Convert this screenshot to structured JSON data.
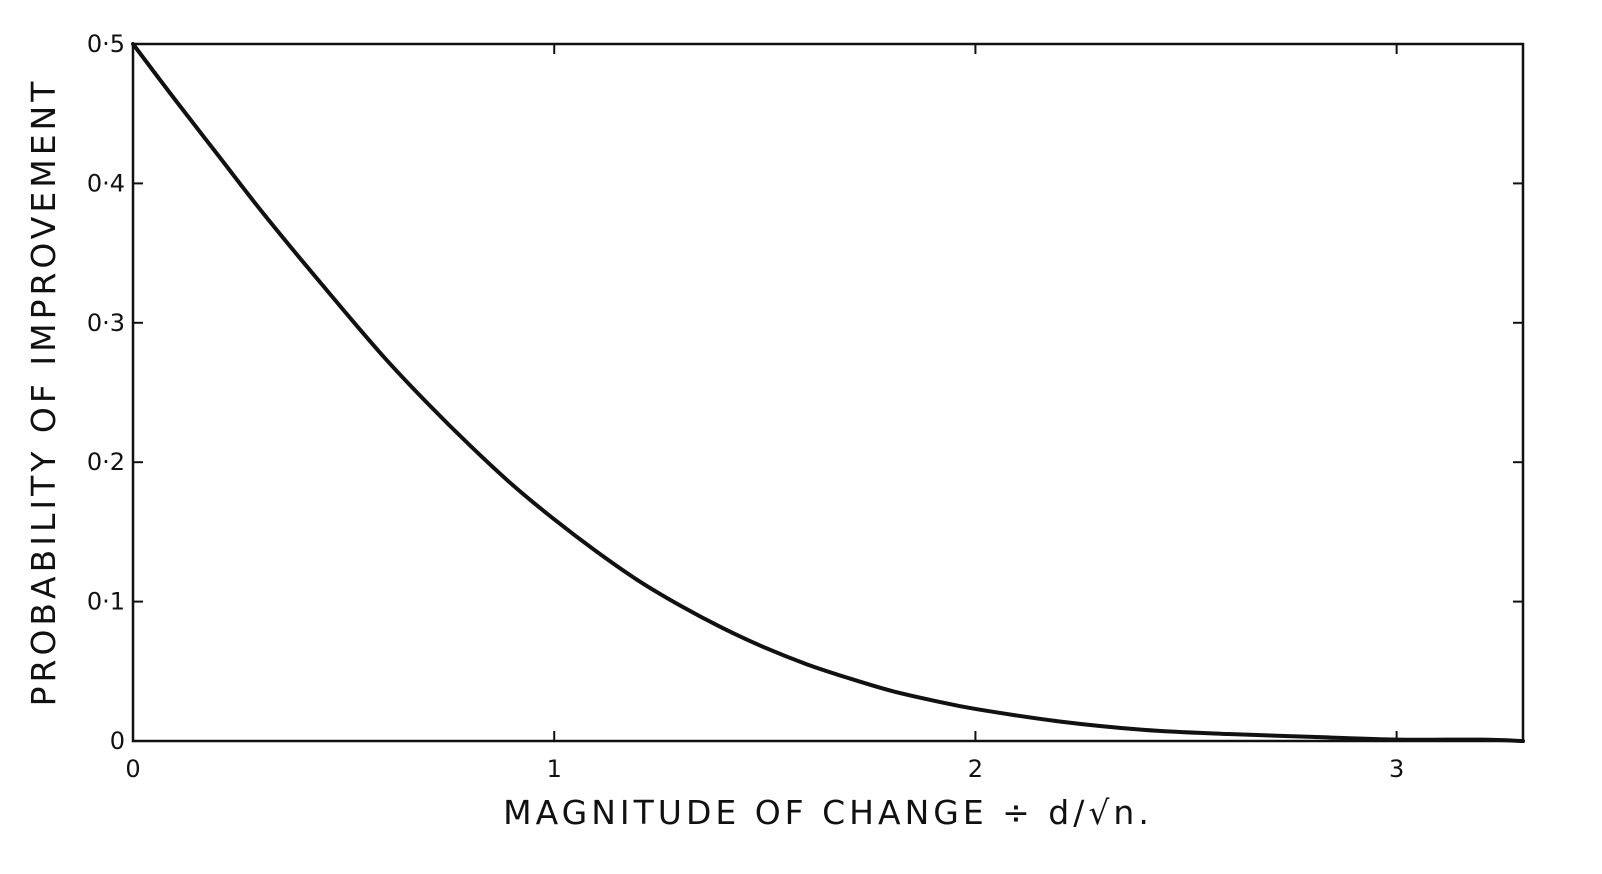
{
  "chart_data": {
    "type": "line",
    "title": "",
    "xlabel": "MAGNITUDE  OF  CHANGE  ÷  d/√n.",
    "ylabel": "PROBABILITY  OF  IMPROVEMENT",
    "xlim": [
      0,
      3.3
    ],
    "ylim": [
      0,
      0.5
    ],
    "x_ticks": [
      0,
      1,
      2,
      3
    ],
    "x_tick_labels": [
      "0",
      "1",
      "2",
      "3"
    ],
    "y_ticks": [
      0,
      0.1,
      0.2,
      0.3,
      0.4,
      0.5
    ],
    "y_tick_labels": [
      "0",
      "0·1",
      "0·2",
      "0·3",
      "0·4",
      "0·5"
    ],
    "grid": false,
    "line_color": "#111111",
    "series": [
      {
        "x": [
          0,
          0.1,
          0.2,
          0.3,
          0.4,
          0.5,
          0.6,
          0.7,
          0.8,
          0.9,
          1.0,
          1.1,
          1.2,
          1.3,
          1.4,
          1.5,
          1.6,
          1.7,
          1.8,
          1.9,
          2.0,
          2.2,
          2.4,
          2.6,
          2.8,
          3.0,
          3.2,
          3.3
        ],
        "y": [
          0.5,
          0.46,
          0.421,
          0.382,
          0.345,
          0.309,
          0.274,
          0.242,
          0.212,
          0.184,
          0.159,
          0.136,
          0.115,
          0.097,
          0.081,
          0.067,
          0.055,
          0.045,
          0.036,
          0.029,
          0.023,
          0.014,
          0.008,
          0.005,
          0.003,
          0.001,
          0.001,
          0.0
        ]
      }
    ]
  }
}
